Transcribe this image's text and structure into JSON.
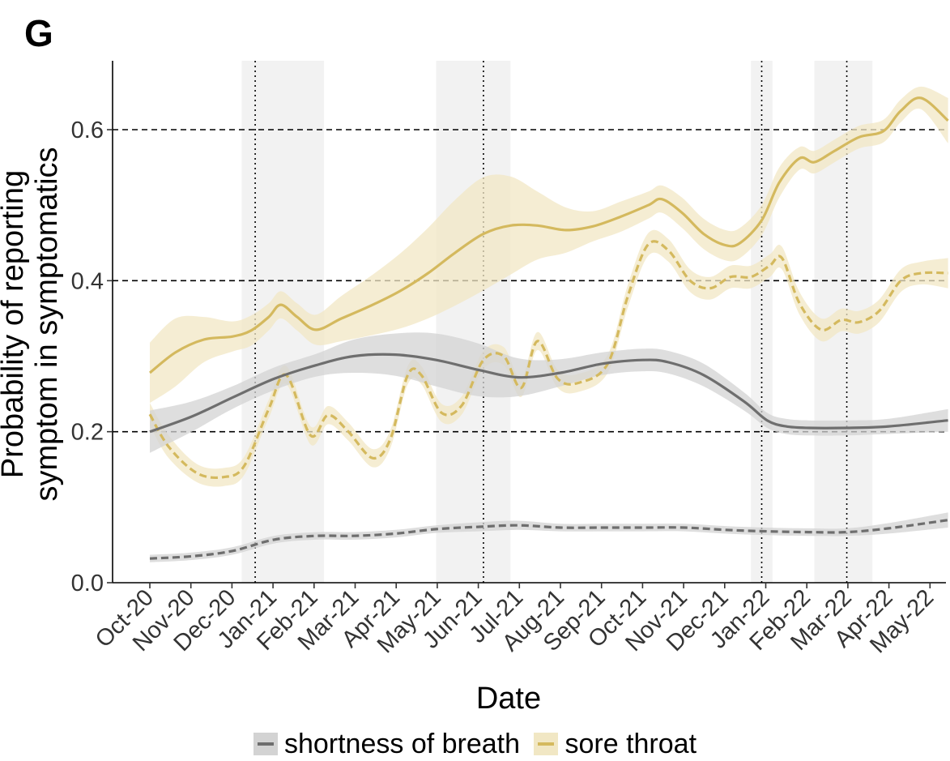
{
  "panel_label": "G",
  "chart_data": {
    "type": "line",
    "title": "",
    "xlabel": "Date",
    "ylabel_line1": "Probability of reporting",
    "ylabel_line2": "symptom in symptomatics",
    "x_ticks": [
      "Oct-20",
      "Nov-20",
      "Dec-20",
      "Jan-21",
      "Feb-21",
      "Mar-21",
      "Apr-21",
      "May-21",
      "Jun-21",
      "Jul-21",
      "Aug-21",
      "Sep-21",
      "Oct-21",
      "Nov-21",
      "Dec-21",
      "Jan-22",
      "Feb-22",
      "Mar-22",
      "Apr-22",
      "May-22"
    ],
    "y_ticks": [
      "0.0",
      "0.2",
      "0.4",
      "0.6"
    ],
    "ylim": [
      0,
      0.69
    ],
    "xlim": [
      "2020-10-01",
      "2022-05-20"
    ],
    "hlines": [
      0.2,
      0.4,
      0.6
    ],
    "vlines": [
      "2020-12-18",
      "2021-06-05",
      "2021-12-28",
      "2022-03-01"
    ],
    "shaded_periods": [
      [
        "2020-12-08",
        "2021-02-07"
      ],
      [
        "2021-05-01",
        "2021-06-25"
      ],
      [
        "2021-12-20",
        "2022-01-05"
      ],
      [
        "2022-02-05",
        "2022-03-20"
      ]
    ],
    "legend_position": "bottom",
    "colors": {
      "shortness_of_breath": "#6e6e6e",
      "sore_throat": "#d4b95e",
      "shortness_of_breath_band": "#d3d3d3",
      "sore_throat_band": "#f1e7c4"
    },
    "series": [
      {
        "name": "sore throat",
        "style": "solid",
        "color": "#d4b95e",
        "x": [
          "2020-10-01",
          "2020-10-20",
          "2020-11-10",
          "2020-12-01",
          "2020-12-15",
          "2020-12-28",
          "2021-01-06",
          "2021-01-18",
          "2021-02-01",
          "2021-02-20",
          "2021-03-15",
          "2021-04-05",
          "2021-04-25",
          "2021-05-15",
          "2021-06-05",
          "2021-06-25",
          "2021-07-15",
          "2021-08-05",
          "2021-08-25",
          "2021-09-15",
          "2021-10-05",
          "2021-10-15",
          "2021-10-30",
          "2021-11-15",
          "2021-12-01",
          "2021-12-12",
          "2021-12-28",
          "2022-01-10",
          "2022-01-25",
          "2022-02-05",
          "2022-02-20",
          "2022-03-10",
          "2022-03-28",
          "2022-04-10",
          "2022-04-25",
          "2022-05-15"
        ],
        "y": [
          0.278,
          0.305,
          0.322,
          0.326,
          0.334,
          0.352,
          0.368,
          0.352,
          0.335,
          0.35,
          0.368,
          0.387,
          0.41,
          0.437,
          0.462,
          0.473,
          0.473,
          0.467,
          0.472,
          0.485,
          0.5,
          0.508,
          0.49,
          0.462,
          0.447,
          0.45,
          0.48,
          0.53,
          0.562,
          0.557,
          0.572,
          0.59,
          0.598,
          0.625,
          0.642,
          0.612
        ],
        "band": [
          0.04,
          0.045,
          0.03,
          0.02,
          0.02,
          0.018,
          0.018,
          0.018,
          0.02,
          0.03,
          0.04,
          0.05,
          0.06,
          0.07,
          0.075,
          0.065,
          0.045,
          0.03,
          0.02,
          0.02,
          0.018,
          0.018,
          0.02,
          0.02,
          0.02,
          0.02,
          0.02,
          0.02,
          0.015,
          0.015,
          0.015,
          0.015,
          0.015,
          0.015,
          0.015,
          0.03
        ]
      },
      {
        "name": "",
        "style": "dashed",
        "color": "#d4b95e",
        "x": [
          "2020-10-01",
          "2020-10-15",
          "2020-11-05",
          "2020-11-25",
          "2020-12-10",
          "2020-12-28",
          "2021-01-10",
          "2021-01-28",
          "2021-02-10",
          "2021-02-25",
          "2021-03-15",
          "2021-03-28",
          "2021-04-10",
          "2021-04-20",
          "2021-05-05",
          "2021-05-20",
          "2021-06-05",
          "2021-06-20",
          "2021-07-03",
          "2021-07-15",
          "2021-07-30",
          "2021-08-15",
          "2021-09-05",
          "2021-09-20",
          "2021-10-05",
          "2021-10-20",
          "2021-11-05",
          "2021-11-20",
          "2021-12-05",
          "2021-12-20",
          "2022-01-03",
          "2022-01-12",
          "2022-01-25",
          "2022-02-10",
          "2022-02-25",
          "2022-03-10",
          "2022-03-25",
          "2022-04-10",
          "2022-04-25",
          "2022-05-15"
        ],
        "y": [
          0.223,
          0.18,
          0.145,
          0.14,
          0.155,
          0.23,
          0.275,
          0.195,
          0.222,
          0.2,
          0.165,
          0.19,
          0.275,
          0.275,
          0.225,
          0.235,
          0.295,
          0.3,
          0.258,
          0.32,
          0.27,
          0.265,
          0.29,
          0.38,
          0.448,
          0.44,
          0.4,
          0.39,
          0.405,
          0.405,
          0.42,
          0.43,
          0.37,
          0.335,
          0.348,
          0.345,
          0.36,
          0.4,
          0.41,
          0.41
        ],
        "band": [
          0.015,
          0.015,
          0.012,
          0.012,
          0.012,
          0.012,
          0.012,
          0.012,
          0.012,
          0.012,
          0.012,
          0.012,
          0.012,
          0.012,
          0.012,
          0.012,
          0.012,
          0.012,
          0.012,
          0.012,
          0.012,
          0.012,
          0.012,
          0.015,
          0.015,
          0.015,
          0.015,
          0.015,
          0.015,
          0.015,
          0.015,
          0.015,
          0.015,
          0.015,
          0.015,
          0.015,
          0.015,
          0.015,
          0.015,
          0.02
        ]
      },
      {
        "name": "shortness of breath",
        "style": "solid",
        "color": "#6e6e6e",
        "x": [
          "2020-10-01",
          "2020-11-01",
          "2020-12-01",
          "2021-01-01",
          "2021-02-01",
          "2021-03-01",
          "2021-04-01",
          "2021-05-01",
          "2021-06-01",
          "2021-07-01",
          "2021-08-01",
          "2021-09-01",
          "2021-10-01",
          "2021-10-20",
          "2021-11-15",
          "2021-12-15",
          "2022-01-01",
          "2022-01-15",
          "2022-02-01",
          "2022-03-01",
          "2022-04-01",
          "2022-05-15"
        ],
        "y": [
          0.2,
          0.22,
          0.245,
          0.27,
          0.288,
          0.3,
          0.302,
          0.295,
          0.282,
          0.272,
          0.278,
          0.29,
          0.295,
          0.292,
          0.275,
          0.24,
          0.215,
          0.207,
          0.205,
          0.205,
          0.207,
          0.215
        ],
        "band": [
          0.028,
          0.02,
          0.015,
          0.015,
          0.015,
          0.022,
          0.028,
          0.035,
          0.035,
          0.025,
          0.018,
          0.015,
          0.015,
          0.015,
          0.015,
          0.012,
          0.01,
          0.01,
          0.01,
          0.01,
          0.01,
          0.015
        ]
      },
      {
        "name": "",
        "style": "dashed",
        "color": "#6e6e6e",
        "x": [
          "2020-10-01",
          "2020-11-01",
          "2020-12-01",
          "2021-01-01",
          "2021-02-01",
          "2021-03-01",
          "2021-04-01",
          "2021-05-01",
          "2021-06-01",
          "2021-07-01",
          "2021-08-01",
          "2021-09-01",
          "2021-10-01",
          "2021-11-01",
          "2021-12-01",
          "2022-01-01",
          "2022-02-01",
          "2022-03-01",
          "2022-04-01",
          "2022-05-15"
        ],
        "y": [
          0.032,
          0.035,
          0.042,
          0.057,
          0.062,
          0.062,
          0.065,
          0.071,
          0.074,
          0.076,
          0.073,
          0.073,
          0.073,
          0.073,
          0.07,
          0.068,
          0.067,
          0.067,
          0.072,
          0.083
        ],
        "band": [
          0.005,
          0.005,
          0.005,
          0.005,
          0.005,
          0.005,
          0.005,
          0.005,
          0.006,
          0.006,
          0.005,
          0.005,
          0.005,
          0.005,
          0.005,
          0.005,
          0.005,
          0.005,
          0.007,
          0.01
        ]
      }
    ]
  },
  "legend": [
    {
      "label": "shortness of breath",
      "color": "#6e6e6e",
      "fill": "#d3d3d3"
    },
    {
      "label": "sore throat",
      "color": "#d4b95e",
      "fill": "#f1e7c4"
    }
  ]
}
